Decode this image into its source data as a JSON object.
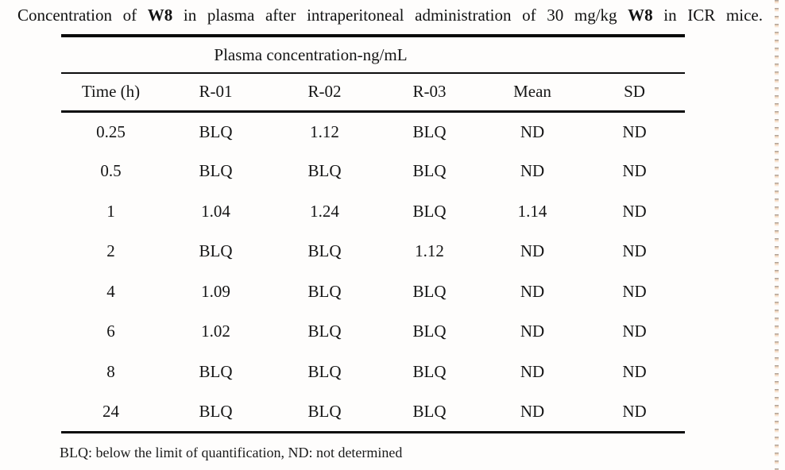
{
  "title": {
    "seg1": "Concentration of ",
    "bold1": "W8",
    "seg2": " in plasma after intraperitoneal administration of 30 mg/kg ",
    "bold2": "W8",
    "seg3": " in ICR mice."
  },
  "table": {
    "group_header": "Plasma concentration-ng/mL",
    "columns": [
      "Time (h)",
      "R-01",
      "R-02",
      "R-03",
      "Mean",
      "SD"
    ],
    "rows": [
      [
        "0.25",
        "BLQ",
        "1.12",
        "BLQ",
        "ND",
        "ND"
      ],
      [
        "0.5",
        "BLQ",
        "BLQ",
        "BLQ",
        "ND",
        "ND"
      ],
      [
        "1",
        "1.04",
        "1.24",
        "BLQ",
        "1.14",
        "ND"
      ],
      [
        "2",
        "BLQ",
        "BLQ",
        "1.12",
        "ND",
        "ND"
      ],
      [
        "4",
        "1.09",
        "BLQ",
        "BLQ",
        "ND",
        "ND"
      ],
      [
        "6",
        "1.02",
        "BLQ",
        "BLQ",
        "ND",
        "ND"
      ],
      [
        "8",
        "BLQ",
        "BLQ",
        "BLQ",
        "ND",
        "ND"
      ],
      [
        "24",
        "BLQ",
        "BLQ",
        "BLQ",
        "ND",
        "ND"
      ]
    ]
  },
  "footnote": "BLQ: below the limit of quantification, ND: not determined",
  "colors": {
    "text": "#141414",
    "rule": "#0a0a0a",
    "edge_dot_light": "#f3d4b8",
    "edge_dot_dark": "#8a7666"
  }
}
